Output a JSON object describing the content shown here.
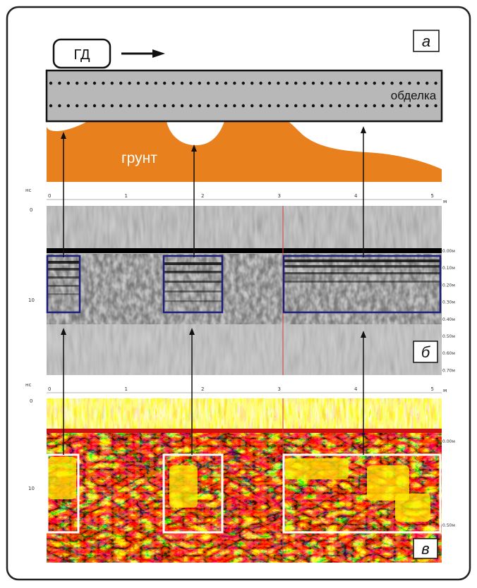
{
  "panel_a": {
    "label": "а",
    "device_label": "ГД",
    "lining_label": "обделка",
    "soil_label": "грунт"
  },
  "panel_b": {
    "label": "б",
    "unit_time": "нс",
    "unit_dist": "м",
    "x_ticks": [
      "0",
      "1",
      "2",
      "3",
      "4",
      "5"
    ],
    "y_ticks": [
      "0",
      "10"
    ],
    "depth_ticks": [
      "0.00м",
      "0.10м",
      "0.20м",
      "0.30м",
      "0.40м",
      "0.50м",
      "0.60м",
      "0.70м"
    ]
  },
  "panel_c": {
    "label": "в",
    "unit_time": "нс",
    "unit_dist": "м",
    "x_ticks": [
      "0",
      "1",
      "2",
      "3",
      "4",
      "5"
    ],
    "y_ticks": [
      "0",
      "10"
    ],
    "depth_ticks": [
      "0.00м",
      "0.50м"
    ]
  },
  "colors": {
    "frame": "#222222",
    "lining": "#b8b8b8",
    "soil": "#e8801e",
    "box_b": "#1c1c7a",
    "box_c": "#ffffff",
    "hot_yellow": "#ffee00",
    "hot_red": "#cc1111"
  }
}
